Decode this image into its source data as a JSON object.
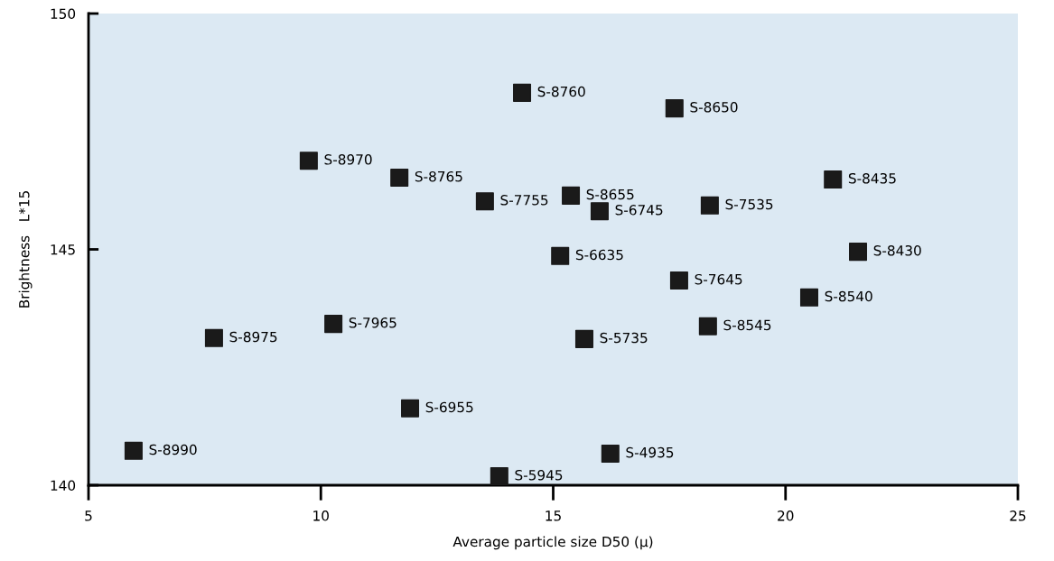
{
  "chart_data": {
    "type": "scatter",
    "xlabel": "Average particle size D50 (μ)",
    "ylabel": "Brightness   L*15",
    "x": [
      14.33,
      17.61,
      9.74,
      11.69,
      13.53,
      15.38,
      16.0,
      18.37,
      21.02,
      21.56,
      15.15,
      17.71,
      20.51,
      18.33,
      7.7,
      10.27,
      15.67,
      11.92,
      5.97,
      16.23,
      13.84
    ],
    "series": [
      {
        "color": "#1a1a1a",
        "values": [
          148.32,
          147.99,
          146.88,
          146.52,
          146.02,
          146.14,
          145.81,
          145.93,
          146.48,
          144.95,
          144.86,
          144.34,
          143.98,
          143.37,
          143.12,
          143.42,
          143.1,
          141.63,
          140.73,
          140.67,
          140.19
        ]
      }
    ],
    "annotations": [
      {
        "text": "S-8760",
        "x": 14.33,
        "y": 148.32
      },
      {
        "text": "S-8650",
        "x": 17.61,
        "y": 147.99
      },
      {
        "text": "S-8970",
        "x": 9.74,
        "y": 146.88
      },
      {
        "text": "S-8765",
        "x": 11.69,
        "y": 146.52
      },
      {
        "text": "S-7755",
        "x": 13.53,
        "y": 146.02
      },
      {
        "text": "S-8655",
        "x": 15.38,
        "y": 146.14
      },
      {
        "text": "S-6745",
        "x": 16.0,
        "y": 145.81
      },
      {
        "text": "S-7535",
        "x": 18.37,
        "y": 145.93
      },
      {
        "text": "S-8435",
        "x": 21.02,
        "y": 146.48
      },
      {
        "text": "S-8430",
        "x": 21.56,
        "y": 144.95
      },
      {
        "text": "S-6635",
        "x": 15.15,
        "y": 144.86
      },
      {
        "text": "S-7645",
        "x": 17.71,
        "y": 144.34
      },
      {
        "text": "S-8540",
        "x": 20.51,
        "y": 143.98
      },
      {
        "text": "S-8545",
        "x": 18.33,
        "y": 143.37
      },
      {
        "text": "S-8975",
        "x": 7.7,
        "y": 143.12
      },
      {
        "text": "S-7965",
        "x": 10.27,
        "y": 143.42
      },
      {
        "text": "S-5735",
        "x": 15.67,
        "y": 143.1
      },
      {
        "text": "S-6955",
        "x": 11.92,
        "y": 141.63
      },
      {
        "text": "S-8990",
        "x": 5.97,
        "y": 140.73
      },
      {
        "text": "S-4935",
        "x": 16.23,
        "y": 140.67
      },
      {
        "text": "S-5945",
        "x": 13.84,
        "y": 140.19
      }
    ],
    "xlim": [
      5,
      25
    ],
    "xticks": [
      5,
      10,
      15,
      20,
      25
    ],
    "ylim": [
      140,
      150
    ],
    "yticks": [
      140,
      145,
      150
    ],
    "marker": "square",
    "grid": false,
    "legend": false
  }
}
